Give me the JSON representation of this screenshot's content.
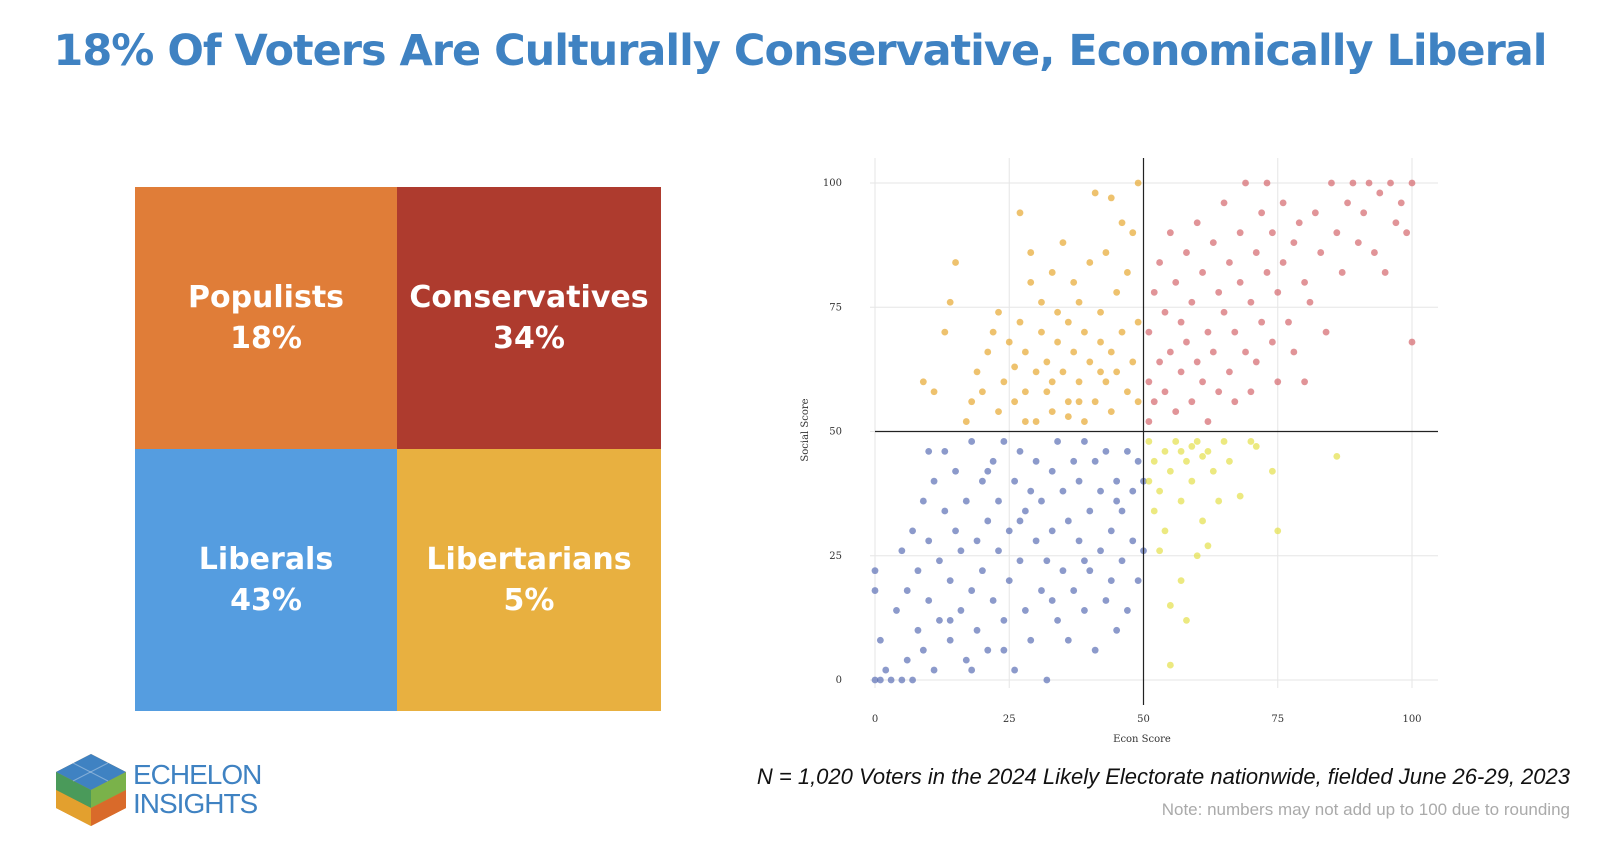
{
  "title": "18% Of Voters Are Culturally Conservative, Economically Liberal",
  "quadrants": [
    {
      "name": "Populists",
      "pct": "18%",
      "color": "#e07d38"
    },
    {
      "name": "Conservatives",
      "pct": "34%",
      "color": "#ae3b2e"
    },
    {
      "name": "Liberals",
      "pct": "43%",
      "color": "#559de0"
    },
    {
      "name": "Libertarians",
      "pct": "5%",
      "color": "#e8b040"
    }
  ],
  "chart_data": {
    "type": "scatter",
    "title": "",
    "xlabel": "Econ Score",
    "ylabel": "Social Score",
    "xlim": [
      0,
      100
    ],
    "ylim": [
      0,
      100
    ],
    "xticks": [
      "0",
      "25",
      "50",
      "75",
      "100"
    ],
    "yticks": [
      "0",
      "25",
      "50",
      "75",
      "100"
    ],
    "grid": true,
    "divider": {
      "x": 50,
      "y": 50
    },
    "series": [
      {
        "name": "Populists",
        "color": "#e7a830",
        "points": [
          [
            9,
            60
          ],
          [
            11,
            58
          ],
          [
            13,
            70
          ],
          [
            14,
            76
          ],
          [
            15,
            84
          ],
          [
            17,
            52
          ],
          [
            18,
            56
          ],
          [
            19,
            62
          ],
          [
            20,
            58
          ],
          [
            21,
            66
          ],
          [
            22,
            70
          ],
          [
            23,
            54
          ],
          [
            23,
            74
          ],
          [
            24,
            60
          ],
          [
            25,
            68
          ],
          [
            26,
            63
          ],
          [
            26,
            56
          ],
          [
            27,
            72
          ],
          [
            27,
            94
          ],
          [
            28,
            58
          ],
          [
            28,
            66
          ],
          [
            29,
            80
          ],
          [
            29,
            86
          ],
          [
            30,
            52
          ],
          [
            30,
            62
          ],
          [
            31,
            70
          ],
          [
            31,
            76
          ],
          [
            32,
            58
          ],
          [
            32,
            64
          ],
          [
            33,
            82
          ],
          [
            33,
            54
          ],
          [
            34,
            68
          ],
          [
            34,
            74
          ],
          [
            35,
            62
          ],
          [
            35,
            88
          ],
          [
            36,
            56
          ],
          [
            36,
            72
          ],
          [
            37,
            66
          ],
          [
            37,
            80
          ],
          [
            38,
            60
          ],
          [
            38,
            76
          ],
          [
            39,
            52
          ],
          [
            39,
            70
          ],
          [
            40,
            64
          ],
          [
            40,
            84
          ],
          [
            41,
            56
          ],
          [
            41,
            98
          ],
          [
            42,
            68
          ],
          [
            42,
            74
          ],
          [
            43,
            60
          ],
          [
            43,
            86
          ],
          [
            44,
            66
          ],
          [
            44,
            54
          ],
          [
            45,
            78
          ],
          [
            45,
            62
          ],
          [
            46,
            92
          ],
          [
            46,
            70
          ],
          [
            47,
            58
          ],
          [
            47,
            82
          ],
          [
            48,
            64
          ],
          [
            48,
            90
          ],
          [
            49,
            56
          ],
          [
            49,
            72
          ],
          [
            49,
            100
          ],
          [
            44,
            97
          ],
          [
            36,
            53
          ],
          [
            28,
            52
          ],
          [
            33,
            60
          ],
          [
            38,
            56
          ],
          [
            42,
            62
          ]
        ]
      },
      {
        "name": "Conservatives",
        "color": "#d4666c",
        "points": [
          [
            51,
            52
          ],
          [
            51,
            60
          ],
          [
            51,
            70
          ],
          [
            52,
            56
          ],
          [
            52,
            78
          ],
          [
            53,
            64
          ],
          [
            53,
            84
          ],
          [
            54,
            58
          ],
          [
            54,
            74
          ],
          [
            55,
            66
          ],
          [
            55,
            90
          ],
          [
            56,
            54
          ],
          [
            56,
            80
          ],
          [
            57,
            62
          ],
          [
            57,
            72
          ],
          [
            58,
            68
          ],
          [
            58,
            86
          ],
          [
            59,
            56
          ],
          [
            59,
            76
          ],
          [
            60,
            64
          ],
          [
            60,
            92
          ],
          [
            61,
            60
          ],
          [
            61,
            82
          ],
          [
            62,
            70
          ],
          [
            62,
            52
          ],
          [
            63,
            66
          ],
          [
            63,
            88
          ],
          [
            64,
            58
          ],
          [
            64,
            78
          ],
          [
            65,
            74
          ],
          [
            65,
            96
          ],
          [
            66,
            62
          ],
          [
            66,
            84
          ],
          [
            67,
            56
          ],
          [
            67,
            70
          ],
          [
            68,
            80
          ],
          [
            68,
            90
          ],
          [
            69,
            66
          ],
          [
            69,
            100
          ],
          [
            70,
            58
          ],
          [
            70,
            76
          ],
          [
            71,
            86
          ],
          [
            71,
            64
          ],
          [
            72,
            94
          ],
          [
            72,
            72
          ],
          [
            73,
            82
          ],
          [
            73,
            100
          ],
          [
            74,
            68
          ],
          [
            74,
            90
          ],
          [
            75,
            78
          ],
          [
            75,
            60
          ],
          [
            76,
            96
          ],
          [
            76,
            84
          ],
          [
            77,
            72
          ],
          [
            78,
            88
          ],
          [
            78,
            66
          ],
          [
            79,
            92
          ],
          [
            80,
            80
          ],
          [
            81,
            76
          ],
          [
            82,
            94
          ],
          [
            83,
            86
          ],
          [
            84,
            70
          ],
          [
            85,
            100
          ],
          [
            86,
            90
          ],
          [
            87,
            82
          ],
          [
            88,
            96
          ],
          [
            89,
            100
          ],
          [
            90,
            88
          ],
          [
            91,
            94
          ],
          [
            92,
            100
          ],
          [
            93,
            86
          ],
          [
            94,
            98
          ],
          [
            95,
            82
          ],
          [
            96,
            100
          ],
          [
            97,
            92
          ],
          [
            98,
            96
          ],
          [
            99,
            90
          ],
          [
            100,
            100
          ],
          [
            100,
            68
          ],
          [
            80,
            60
          ]
        ]
      },
      {
        "name": "Liberals",
        "color": "#5b6fb5",
        "points": [
          [
            0,
            0
          ],
          [
            0,
            18
          ],
          [
            0,
            22
          ],
          [
            1,
            0
          ],
          [
            1,
            8
          ],
          [
            2,
            2
          ],
          [
            3,
            0
          ],
          [
            4,
            14
          ],
          [
            5,
            0
          ],
          [
            5,
            26
          ],
          [
            6,
            4
          ],
          [
            6,
            18
          ],
          [
            7,
            0
          ],
          [
            7,
            30
          ],
          [
            8,
            10
          ],
          [
            8,
            22
          ],
          [
            9,
            36
          ],
          [
            9,
            6
          ],
          [
            10,
            16
          ],
          [
            10,
            28
          ],
          [
            11,
            2
          ],
          [
            11,
            40
          ],
          [
            12,
            12
          ],
          [
            12,
            24
          ],
          [
            13,
            34
          ],
          [
            13,
            46
          ],
          [
            14,
            8
          ],
          [
            14,
            20
          ],
          [
            15,
            30
          ],
          [
            15,
            42
          ],
          [
            16,
            14
          ],
          [
            16,
            26
          ],
          [
            17,
            4
          ],
          [
            17,
            36
          ],
          [
            18,
            48
          ],
          [
            18,
            18
          ],
          [
            19,
            28
          ],
          [
            19,
            10
          ],
          [
            20,
            40
          ],
          [
            20,
            22
          ],
          [
            21,
            32
          ],
          [
            21,
            6
          ],
          [
            22,
            44
          ],
          [
            22,
            16
          ],
          [
            23,
            26
          ],
          [
            23,
            36
          ],
          [
            24,
            12
          ],
          [
            24,
            48
          ],
          [
            25,
            20
          ],
          [
            25,
            30
          ],
          [
            26,
            40
          ],
          [
            26,
            2
          ],
          [
            27,
            24
          ],
          [
            27,
            46
          ],
          [
            28,
            14
          ],
          [
            28,
            34
          ],
          [
            29,
            38
          ],
          [
            29,
            8
          ],
          [
            30,
            28
          ],
          [
            30,
            44
          ],
          [
            31,
            18
          ],
          [
            31,
            36
          ],
          [
            32,
            0
          ],
          [
            32,
            24
          ],
          [
            33,
            42
          ],
          [
            33,
            30
          ],
          [
            34,
            12
          ],
          [
            34,
            48
          ],
          [
            35,
            22
          ],
          [
            35,
            38
          ],
          [
            36,
            32
          ],
          [
            36,
            8
          ],
          [
            37,
            44
          ],
          [
            37,
            18
          ],
          [
            38,
            28
          ],
          [
            38,
            40
          ],
          [
            39,
            14
          ],
          [
            39,
            48
          ],
          [
            40,
            22
          ],
          [
            40,
            34
          ],
          [
            41,
            6
          ],
          [
            41,
            44
          ],
          [
            42,
            26
          ],
          [
            42,
            38
          ],
          [
            43,
            16
          ],
          [
            43,
            46
          ],
          [
            44,
            30
          ],
          [
            44,
            20
          ],
          [
            45,
            40
          ],
          [
            45,
            10
          ],
          [
            46,
            34
          ],
          [
            46,
            24
          ],
          [
            47,
            46
          ],
          [
            47,
            14
          ],
          [
            48,
            28
          ],
          [
            48,
            38
          ],
          [
            49,
            20
          ],
          [
            49,
            44
          ],
          [
            50,
            26
          ],
          [
            50,
            40
          ],
          [
            14,
            12
          ],
          [
            21,
            42
          ],
          [
            27,
            32
          ],
          [
            33,
            16
          ],
          [
            39,
            24
          ],
          [
            45,
            36
          ],
          [
            18,
            2
          ],
          [
            24,
            6
          ],
          [
            10,
            46
          ]
        ]
      },
      {
        "name": "Libertarians",
        "color": "#e4e04a",
        "points": [
          [
            51,
            40
          ],
          [
            51,
            48
          ],
          [
            52,
            34
          ],
          [
            52,
            44
          ],
          [
            53,
            26
          ],
          [
            53,
            38
          ],
          [
            54,
            46
          ],
          [
            54,
            30
          ],
          [
            55,
            15
          ],
          [
            55,
            42
          ],
          [
            56,
            48
          ],
          [
            57,
            36
          ],
          [
            57,
            20
          ],
          [
            58,
            44
          ],
          [
            58,
            12
          ],
          [
            59,
            40
          ],
          [
            60,
            48
          ],
          [
            60,
            25
          ],
          [
            61,
            32
          ],
          [
            62,
            46
          ],
          [
            62,
            27
          ],
          [
            63,
            42
          ],
          [
            64,
            36
          ],
          [
            65,
            48
          ],
          [
            66,
            44
          ],
          [
            68,
            37
          ],
          [
            70,
            48
          ],
          [
            71,
            47
          ],
          [
            74,
            42
          ],
          [
            75,
            30
          ],
          [
            86,
            45
          ],
          [
            55,
            3
          ],
          [
            57,
            46
          ],
          [
            59,
            47
          ],
          [
            61,
            45
          ]
        ]
      }
    ]
  },
  "logo": {
    "line1": "ECHELON",
    "line2": "INSIGHTS"
  },
  "sample_note": "N = 1,020 Voters in the 2024 Likely Electorate nationwide, fielded June 26-29, 2023",
  "rounding_note": "Note: numbers may not add up to 100 due to rounding"
}
